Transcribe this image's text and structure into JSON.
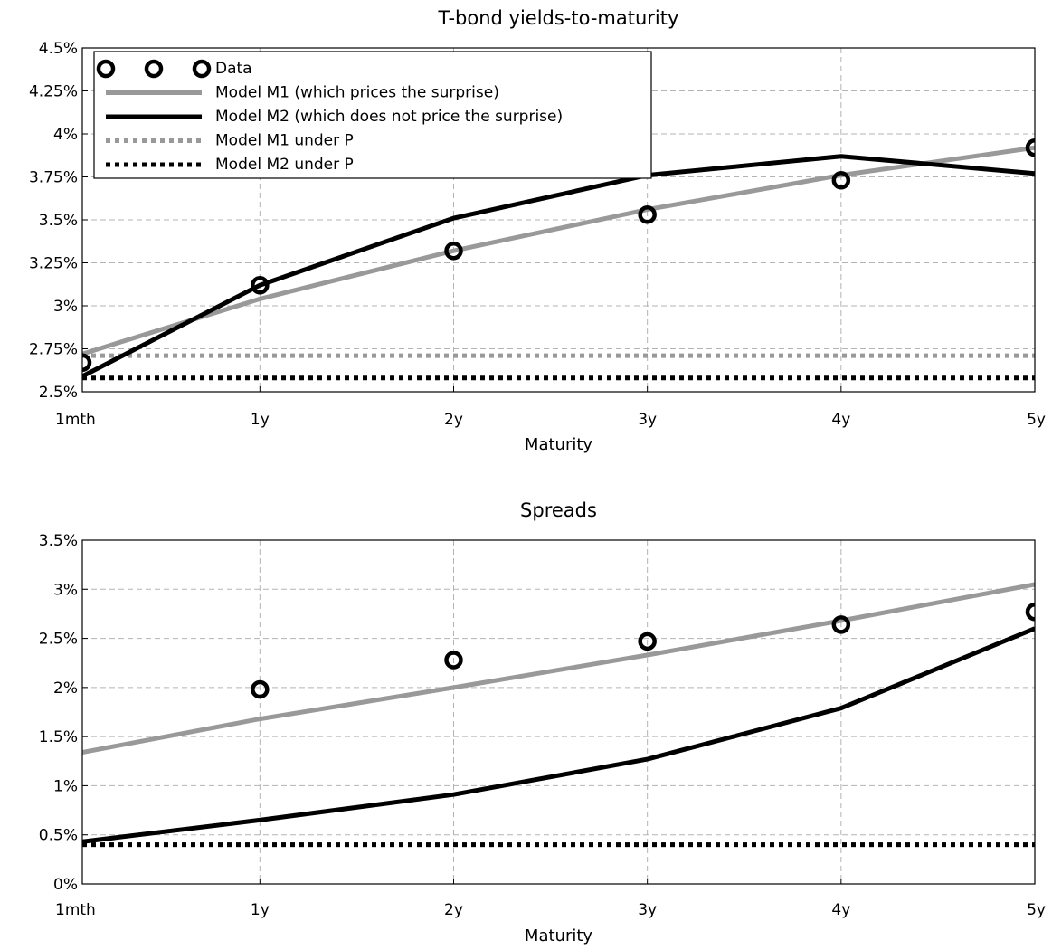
{
  "colors": {
    "data_marker": "#000000",
    "model_m1": "#999999",
    "model_m2": "#000000",
    "grid": "#b3b3b3"
  },
  "chart_data": [
    {
      "type": "line",
      "title": "T-bond yields-to-maturity",
      "xlabel": "Maturity",
      "ylabel": "",
      "x_ticks": [
        "1mth",
        "1y",
        "2y",
        "3y",
        "4y",
        "5y"
      ],
      "x_values_years": [
        0.0833,
        1,
        2,
        3,
        4,
        5
      ],
      "xlim": [
        0.0833,
        5
      ],
      "ylim": [
        2.5,
        4.5
      ],
      "y_ticks": [
        2.5,
        2.75,
        3,
        3.25,
        3.5,
        3.75,
        4,
        4.25,
        4.5
      ],
      "y_tick_labels": [
        "2.5%",
        "2.75%",
        "3%",
        "3.25%",
        "3.5%",
        "3.75%",
        "4%",
        "4.25%",
        "4.5%"
      ],
      "grid": true,
      "legend_position": "top-left",
      "series": [
        {
          "name": "Data",
          "style": "markers",
          "color_key": "data_marker",
          "values": [
            2.67,
            3.12,
            3.32,
            3.53,
            3.73,
            3.92
          ]
        },
        {
          "name": "Model M1 (which prices the surprise)",
          "style": "solid",
          "color_key": "model_m1",
          "values": [
            2.72,
            3.04,
            3.32,
            3.56,
            3.76,
            3.92
          ]
        },
        {
          "name": "Model M2 (which does not price the surprise)",
          "style": "solid",
          "color_key": "model_m2",
          "values": [
            2.59,
            3.12,
            3.51,
            3.76,
            3.87,
            3.77
          ]
        },
        {
          "name": "Model M1 under P",
          "style": "dotted",
          "color_key": "model_m1",
          "values": [
            2.71,
            2.71,
            2.71,
            2.71,
            2.71,
            2.71
          ]
        },
        {
          "name": "Model M2 under P",
          "style": "dotted",
          "color_key": "model_m2",
          "values": [
            2.58,
            2.58,
            2.58,
            2.58,
            2.58,
            2.58
          ]
        }
      ]
    },
    {
      "type": "line",
      "title": "Spreads",
      "xlabel": "Maturity",
      "ylabel": "",
      "x_ticks": [
        "1mth",
        "1y",
        "2y",
        "3y",
        "4y",
        "5y"
      ],
      "x_values_years": [
        0.0833,
        1,
        2,
        3,
        4,
        5
      ],
      "xlim": [
        0.0833,
        5
      ],
      "ylim": [
        0,
        3.5
      ],
      "y_ticks": [
        0,
        0.5,
        1,
        1.5,
        2,
        2.5,
        3,
        3.5
      ],
      "y_tick_labels": [
        "0%",
        "0.5%",
        "1%",
        "1.5%",
        "2%",
        "2.5%",
        "3%",
        "3.5%"
      ],
      "grid": true,
      "legend_position": "none",
      "series": [
        {
          "name": "Data",
          "style": "markers",
          "color_key": "data_marker",
          "values": [
            null,
            1.98,
            2.28,
            2.47,
            2.64,
            2.77
          ]
        },
        {
          "name": "Model M1 (which prices the surprise)",
          "style": "solid",
          "color_key": "model_m1",
          "values": [
            1.34,
            1.68,
            2.0,
            2.33,
            2.68,
            3.05
          ]
        },
        {
          "name": "Model M2 (which does not price the surprise)",
          "style": "solid",
          "color_key": "model_m2",
          "values": [
            0.43,
            0.65,
            0.91,
            1.27,
            1.79,
            2.6
          ]
        },
        {
          "name": "Model M1 under P",
          "style": "dotted",
          "color_key": "model_m1",
          "values": [
            0.4,
            0.4,
            0.4,
            0.4,
            0.4,
            0.4
          ]
        },
        {
          "name": "Model M2 under P",
          "style": "dotted",
          "color_key": "model_m2",
          "values": [
            0.4,
            0.4,
            0.4,
            0.4,
            0.4,
            0.4
          ]
        }
      ]
    }
  ]
}
